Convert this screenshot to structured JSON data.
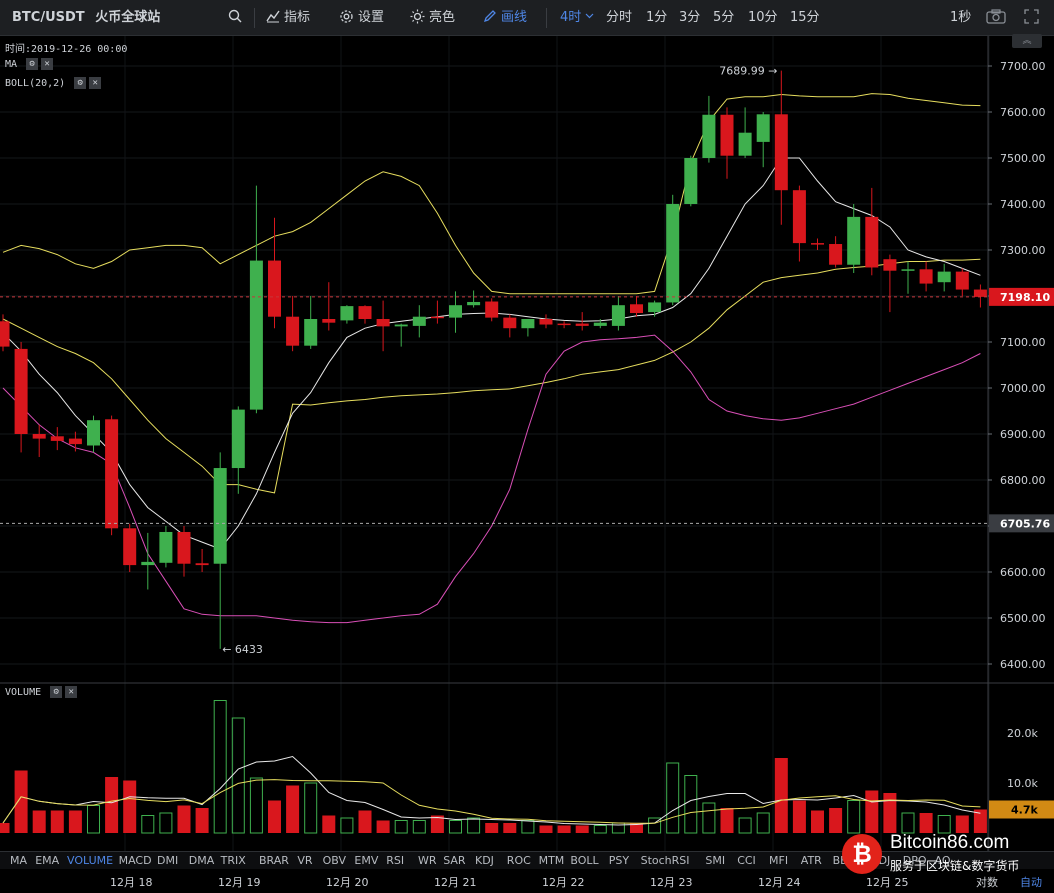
{
  "toolbar": {
    "pair": "BTC/USDT",
    "exchange": "火币全球站",
    "indicators_label": "指标",
    "settings_label": "设置",
    "theme_label": "亮色",
    "draw_label": "画线",
    "interval_selected": "4时",
    "intervals": [
      "分时",
      "1分",
      "3分",
      "5分",
      "10分",
      "15分"
    ],
    "refresh": "1秒"
  },
  "info": {
    "time_label": "时间:",
    "time_value": "2019-12-26 00:00",
    "ma_label": "MA",
    "boll_label": "BOLL(20,2)",
    "volume_label": "VOLUME"
  },
  "price_axis": {
    "ticks": [
      "7700.00",
      "7600.00",
      "7500.00",
      "7400.00",
      "7300.00",
      "7200.00",
      "7100.00",
      "7000.00",
      "6900.00",
      "6800.00",
      "6700.00",
      "6600.00",
      "6500.00",
      "6400.00"
    ],
    "current_price": "7198.10",
    "dashed_level": "6705.76",
    "high_marker": "7689.99 →",
    "low_marker": "← 6433"
  },
  "volume_axis": {
    "ticks": [
      "20.0k",
      "10.0k"
    ],
    "current_volume": "4.7k"
  },
  "indicator_tabs": [
    "MA",
    "EMA",
    "VOLUME",
    "MACD",
    "DMI",
    "DMA",
    "TRIX",
    "BRAR",
    "VR",
    "OBV",
    "EMV",
    "RSI",
    "WR",
    "SAR",
    "KDJ",
    "ROC",
    "MTM",
    "BOLL",
    "PSY",
    "StochRSI",
    "SMI",
    "CCI",
    "MFI",
    "ATR",
    "BBW",
    "SKDJ",
    "DPO",
    "AO"
  ],
  "active_indicator_tab": "VOLUME",
  "date_axis": {
    "labels": [
      "12月 18",
      "12月 19",
      "12月 20",
      "12月 21",
      "12月 22",
      "12月 23",
      "12月 24",
      "12月 25"
    ],
    "scale_mode": "对数",
    "auto_mode": "自动"
  },
  "watermark": {
    "site": "Bitcoin86.com",
    "tagline": "服务于区块链&数字货币"
  },
  "colors": {
    "up": "#3fb04e",
    "down": "#d9171d",
    "boll": "#e6dd5e",
    "ma_white": "#e8e8e8",
    "boll_lower": "#d94fb7",
    "accent": "#4e86e6"
  },
  "chart_data": {
    "type": "candlestick",
    "interval": "4h",
    "candles": [
      {
        "o": 7145,
        "h": 7160,
        "c": 7090,
        "l": 7080
      },
      {
        "o": 7085,
        "h": 7100,
        "c": 6900,
        "l": 6860
      },
      {
        "o": 6900,
        "h": 6920,
        "c": 6890,
        "l": 6850
      },
      {
        "o": 6895,
        "h": 6915,
        "c": 6885,
        "l": 6865
      },
      {
        "o": 6890,
        "h": 6905,
        "c": 6878,
        "l": 6862
      },
      {
        "o": 6875,
        "h": 6940,
        "c": 6930,
        "l": 6860
      },
      {
        "o": 6932,
        "h": 6940,
        "c": 6695,
        "l": 6680
      },
      {
        "o": 6695,
        "h": 6705,
        "c": 6615,
        "l": 6600
      },
      {
        "o": 6615,
        "h": 6685,
        "c": 6622,
        "l": 6562
      },
      {
        "o": 6620,
        "h": 6700,
        "c": 6687,
        "l": 6610
      },
      {
        "o": 6687,
        "h": 6700,
        "c": 6618,
        "l": 6590
      },
      {
        "o": 6619,
        "h": 6650,
        "c": 6615,
        "l": 6600
      },
      {
        "o": 6618,
        "h": 6860,
        "c": 6826,
        "l": 6433
      },
      {
        "o": 6826,
        "h": 6960,
        "c": 6953,
        "l": 6770
      },
      {
        "o": 6953,
        "h": 7440,
        "c": 7277,
        "l": 6945
      },
      {
        "o": 7277,
        "h": 7370,
        "c": 7155,
        "l": 7130
      },
      {
        "o": 7155,
        "h": 7200,
        "c": 7092,
        "l": 7080
      },
      {
        "o": 7092,
        "h": 7200,
        "c": 7150,
        "l": 7085
      },
      {
        "o": 7150,
        "h": 7230,
        "c": 7142,
        "l": 7125
      },
      {
        "o": 7147,
        "h": 7180,
        "c": 7178,
        "l": 7140
      },
      {
        "o": 7178,
        "h": 7180,
        "c": 7150,
        "l": 7140
      },
      {
        "o": 7150,
        "h": 7190,
        "c": 7134,
        "l": 7080
      },
      {
        "o": 7134,
        "h": 7140,
        "c": 7138,
        "l": 7090
      },
      {
        "o": 7135,
        "h": 7180,
        "c": 7155,
        "l": 7110
      },
      {
        "o": 7155,
        "h": 7190,
        "c": 7153,
        "l": 7140
      },
      {
        "o": 7153,
        "h": 7210,
        "c": 7180,
        "l": 7120
      },
      {
        "o": 7180,
        "h": 7212,
        "c": 7187,
        "l": 7175
      },
      {
        "o": 7188,
        "h": 7195,
        "c": 7153,
        "l": 7145
      },
      {
        "o": 7153,
        "h": 7160,
        "c": 7130,
        "l": 7110
      },
      {
        "o": 7130,
        "h": 7150,
        "c": 7150,
        "l": 7112
      },
      {
        "o": 7150,
        "h": 7160,
        "c": 7138,
        "l": 7130
      },
      {
        "o": 7140,
        "h": 7145,
        "c": 7138,
        "l": 7130
      },
      {
        "o": 7140,
        "h": 7165,
        "c": 7135,
        "l": 7125
      },
      {
        "o": 7135,
        "h": 7150,
        "c": 7142,
        "l": 7130
      },
      {
        "o": 7135,
        "h": 7200,
        "c": 7180,
        "l": 7125
      },
      {
        "o": 7182,
        "h": 7200,
        "c": 7163,
        "l": 7155
      },
      {
        "o": 7165,
        "h": 7190,
        "c": 7186,
        "l": 7155
      },
      {
        "o": 7186,
        "h": 7420,
        "c": 7400,
        "l": 7180
      },
      {
        "o": 7400,
        "h": 7505,
        "c": 7500,
        "l": 7395
      },
      {
        "o": 7500,
        "h": 7635,
        "c": 7594,
        "l": 7490
      },
      {
        "o": 7594,
        "h": 7610,
        "c": 7505,
        "l": 7455
      },
      {
        "o": 7505,
        "h": 7610,
        "c": 7555,
        "l": 7500
      },
      {
        "o": 7535,
        "h": 7600,
        "c": 7595,
        "l": 7480
      },
      {
        "o": 7595,
        "h": 7690,
        "c": 7430,
        "l": 7355
      },
      {
        "o": 7430,
        "h": 7440,
        "c": 7315,
        "l": 7275
      },
      {
        "o": 7315,
        "h": 7325,
        "c": 7313,
        "l": 7300
      },
      {
        "o": 7313,
        "h": 7330,
        "c": 7268,
        "l": 7262
      },
      {
        "o": 7268,
        "h": 7400,
        "c": 7372,
        "l": 7250
      },
      {
        "o": 7372,
        "h": 7435,
        "c": 7262,
        "l": 7245
      },
      {
        "o": 7280,
        "h": 7290,
        "c": 7255,
        "l": 7165
      },
      {
        "o": 7255,
        "h": 7275,
        "c": 7258,
        "l": 7205
      },
      {
        "o": 7258,
        "h": 7275,
        "c": 7227,
        "l": 7210
      },
      {
        "o": 7230,
        "h": 7270,
        "c": 7253,
        "l": 7210
      },
      {
        "o": 7253,
        "h": 7260,
        "c": 7214,
        "l": 7200
      },
      {
        "o": 7214,
        "h": 7225,
        "c": 7198.1,
        "l": 7175
      }
    ],
    "volumes": [
      2.0,
      12.5,
      4.5,
      4.5,
      4.5,
      5.5,
      11.2,
      10.5,
      3.5,
      4.0,
      5.5,
      5.0,
      26.5,
      23.0,
      11.0,
      6.5,
      9.5,
      10.0,
      3.5,
      3.0,
      4.5,
      2.5,
      2.5,
      2.5,
      3.5,
      2.5,
      3.0,
      2.0,
      2.0,
      2.5,
      1.5,
      1.5,
      1.5,
      1.5,
      2.0,
      2.0,
      3.0,
      14.0,
      11.5,
      6.0,
      5.0,
      3.0,
      4.0,
      15.0,
      6.5,
      4.5,
      5.0,
      6.5,
      8.5,
      8.0,
      4.0,
      4.0,
      3.5,
      3.5,
      4.7
    ],
    "boll_upper": [
      7295,
      7310,
      7303,
      7290,
      7270,
      7260,
      7275,
      7300,
      7305,
      7310,
      7310,
      7305,
      7270,
      7290,
      7310,
      7330,
      7340,
      7360,
      7390,
      7420,
      7450,
      7470,
      7460,
      7440,
      7380,
      7310,
      7250,
      7210,
      7205,
      7205,
      7205,
      7205,
      7205,
      7205,
      7205,
      7205,
      7210,
      7330,
      7490,
      7580,
      7628,
      7633,
      7633,
      7638,
      7635,
      7633,
      7633,
      7633,
      7640,
      7638,
      7630,
      7625,
      7620,
      7615,
      7614
    ],
    "boll_mid": [
      7150,
      7130,
      7110,
      7090,
      7075,
      7055,
      7020,
      6975,
      6930,
      6890,
      6860,
      6830,
      6790,
      6790,
      6780,
      6772,
      6965,
      6963,
      6968,
      6972,
      6975,
      6980,
      6983,
      6985,
      6987,
      6990,
      6994,
      6996,
      6998,
      7005,
      7012,
      7020,
      7030,
      7035,
      7040,
      7050,
      7060,
      7078,
      7100,
      7130,
      7170,
      7200,
      7230,
      7240,
      7245,
      7250,
      7258,
      7262,
      7265,
      7270,
      7275,
      7275,
      7278,
      7278,
      7280
    ],
    "boll_lower": [
      7000,
      6960,
      6920,
      6890,
      6870,
      6860,
      6835,
      6740,
      6640,
      6580,
      6520,
      6508,
      6505,
      6505,
      6505,
      6500,
      6495,
      6492,
      6490,
      6490,
      6495,
      6500,
      6505,
      6508,
      6530,
      6590,
      6640,
      6700,
      6780,
      6910,
      7030,
      7080,
      7100,
      7105,
      7107,
      7110,
      7115,
      7080,
      7035,
      6975,
      6950,
      6940,
      6933,
      6930,
      6935,
      6945,
      6955,
      6965,
      6980,
      6995,
      7010,
      7025,
      7040,
      7055,
      7075
    ],
    "ma_white": [
      7120,
      7080,
      7030,
      6990,
      6940,
      6900,
      6860,
      6790,
      6740,
      6710,
      6680,
      6665,
      6650,
      6700,
      6770,
      6860,
      6945,
      6990,
      7055,
      7110,
      7130,
      7140,
      7145,
      7150,
      7155,
      7160,
      7162,
      7163,
      7160,
      7155,
      7150,
      7147,
      7145,
      7146,
      7150,
      7157,
      7160,
      7175,
      7205,
      7260,
      7330,
      7400,
      7440,
      7500,
      7500,
      7450,
      7405,
      7390,
      7375,
      7350,
      7300,
      7285,
      7275,
      7260,
      7245
    ]
  }
}
